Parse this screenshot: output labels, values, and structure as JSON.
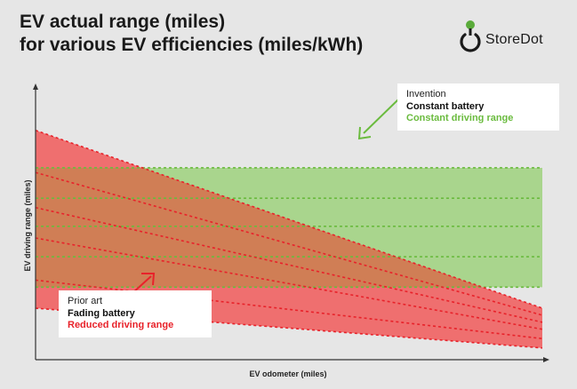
{
  "header": {
    "title_line1": "EV actual range (miles)",
    "title_line2": "for various EV efficiencies (miles/kWh)",
    "brand": "StoreDot"
  },
  "callouts": {
    "invention": {
      "line1": "Invention",
      "line2": "Constant battery",
      "line3": "Constant driving range"
    },
    "prior_art": {
      "line1": "Prior art",
      "line2": "Fading battery",
      "line3": "Reduced driving range"
    }
  },
  "colors": {
    "green_band": "#a9d58d",
    "green_line": "#6abb3e",
    "red_band": "#ef6f6f",
    "red_line": "#e8222a",
    "overlap": "#d07e55",
    "brand_green": "#5aab3a"
  },
  "chart_data": {
    "type": "line",
    "xlabel": "EV odometer (miles)",
    "ylabel": "EV driving range (miles)",
    "x": [
      0,
      1
    ],
    "series": [
      {
        "group": "constant",
        "values": [
          0.82,
          0.82
        ]
      },
      {
        "group": "constant",
        "values": [
          0.69,
          0.69
        ]
      },
      {
        "group": "constant",
        "values": [
          0.57,
          0.57
        ]
      },
      {
        "group": "constant",
        "values": [
          0.44,
          0.44
        ]
      },
      {
        "group": "constant",
        "values": [
          0.31,
          0.31
        ]
      },
      {
        "group": "fading",
        "values": [
          0.98,
          0.22
        ]
      },
      {
        "group": "fading",
        "values": [
          0.8,
          0.19
        ]
      },
      {
        "group": "fading",
        "values": [
          0.65,
          0.16
        ]
      },
      {
        "group": "fading",
        "values": [
          0.52,
          0.13
        ]
      },
      {
        "group": "fading",
        "values": [
          0.34,
          0.09
        ]
      },
      {
        "group": "fading",
        "values": [
          0.22,
          0.05
        ]
      }
    ],
    "xlim": [
      0,
      1
    ],
    "ylim": [
      0,
      1.15
    ],
    "grid": false
  }
}
